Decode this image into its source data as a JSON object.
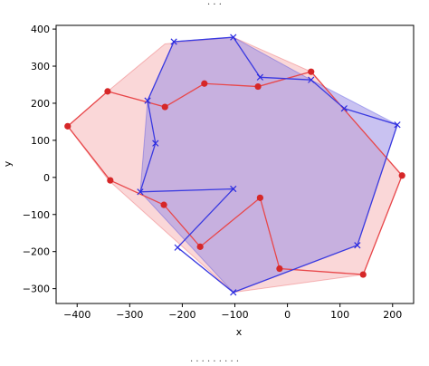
{
  "chart_data": {
    "type": "scatter",
    "xlabel": "x",
    "ylabel": "y",
    "xlim": [
      -440,
      240
    ],
    "ylim": [
      -340,
      410
    ],
    "x_ticks": [
      -400,
      -300,
      -200,
      -100,
      0,
      100,
      200
    ],
    "y_ticks": [
      -300,
      -200,
      -100,
      0,
      100,
      200,
      300,
      400
    ],
    "grid": false,
    "series": [
      {
        "marker": "circle",
        "color": "#d62728",
        "line_color": "#e8474a",
        "fill_color": "#f4a7a9",
        "points": [
          [
            -418,
            138
          ],
          [
            -342,
            232
          ],
          [
            -233,
            190
          ],
          [
            -158,
            253
          ],
          [
            -56,
            245
          ],
          [
            45,
            285
          ],
          [
            218,
            5
          ],
          [
            144,
            -262
          ],
          [
            -15,
            -246
          ],
          [
            -52,
            -55
          ],
          [
            -166,
            -187
          ],
          [
            -235,
            -74
          ],
          [
            -337,
            -8
          ],
          [
            -418,
            138
          ]
        ],
        "hull": [
          [
            -418,
            138
          ],
          [
            -342,
            232
          ],
          [
            -233,
            360
          ],
          [
            -103,
            378
          ],
          [
            45,
            285
          ],
          [
            218,
            5
          ],
          [
            144,
            -262
          ],
          [
            -103,
            -310
          ],
          [
            -340,
            -8
          ],
          [
            -418,
            138
          ]
        ]
      },
      {
        "marker": "x",
        "color": "#2a2ae0",
        "line_color": "#3a3ae0",
        "fill_color": "#9c8fe6",
        "points": [
          [
            -216,
            366
          ],
          [
            -103,
            378
          ],
          [
            -52,
            270
          ],
          [
            45,
            263
          ],
          [
            108,
            186
          ],
          [
            209,
            142
          ],
          [
            133,
            -183
          ],
          [
            -103,
            -310
          ],
          [
            -209,
            -189
          ],
          [
            -103,
            -31
          ],
          [
            -280,
            -39
          ],
          [
            -251,
            92
          ],
          [
            -266,
            207
          ],
          [
            -216,
            366
          ]
        ],
        "hull": [
          [
            -216,
            366
          ],
          [
            -103,
            378
          ],
          [
            45,
            263
          ],
          [
            209,
            142
          ],
          [
            133,
            -183
          ],
          [
            -103,
            -310
          ],
          [
            -280,
            -39
          ],
          [
            -266,
            207
          ],
          [
            -216,
            366
          ]
        ]
      }
    ]
  },
  "fragments": {
    "top": "· · ·",
    "bottom": "· · · · · · · · ·"
  }
}
